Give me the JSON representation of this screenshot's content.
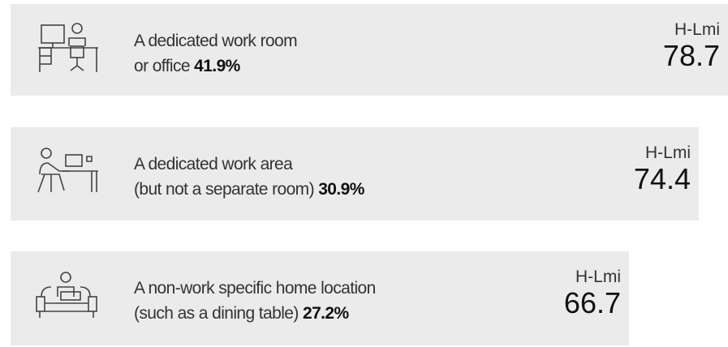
{
  "items": [
    {
      "line1": "A dedicated work room",
      "line2": "or office",
      "percent": "41.9%",
      "label": "H-Lmi",
      "score": "78.7"
    },
    {
      "line1": "A dedicated work area",
      "line2": "(but not a separate room)",
      "percent": "30.9%",
      "label": "H-Lmi",
      "score": "74.4"
    },
    {
      "line1": "A non-work specific home location",
      "line2": "(such as a dining table)",
      "percent": "27.2%",
      "label": "H-Lmi",
      "score": "66.7"
    }
  ]
}
